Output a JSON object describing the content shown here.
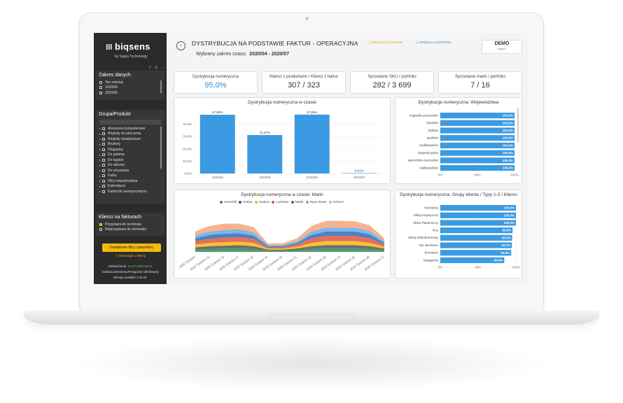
{
  "sidebar": {
    "logo": "biqsens",
    "byline": "by Sagra Technology",
    "mini_icons": "▽ ⊡ ⋯",
    "date_panel": {
      "title": "Zakres danych",
      "items": [
        "Ten miesiąc",
        "2020/06",
        "2020/05"
      ]
    },
    "group_panel": {
      "title": "Grupa/Produkt",
      "items": [
        "Akcesoria komputerowe",
        "Artykuły do pieczenia",
        "Artykuły śniadaniowe",
        "Bruliony",
        "Długopisy",
        "Do golenia",
        "Do kąpieli",
        "Do włosów",
        "Do zmywania",
        "Farby",
        "Filtry kawa/herbata",
        "Kalendarze",
        "Karteczki samoprzylepne"
      ]
    },
    "clients_panel": {
      "title": "Klienci na fakturach",
      "items": [
        "Przypisani do terminala",
        "Nieprzypisani do terminala"
      ]
    },
    "filters_button": "Dodatkowe filtry i parametry",
    "info_link": "ⓘ Informacje o Wersji",
    "refresh_label": "Odświeżanie:",
    "refresh_value": "01.07.2020 08:11",
    "cache_info": "OdataCacheDemoPmsgUser [db:bteam]",
    "version": "Wersja analityki 1.32.01"
  },
  "header": {
    "back_icon": "‹",
    "title": "DYSTRYBUCJA NA PODSTAWIE FAKTUR - OPERACYJNA",
    "range_label": "Wybrany zakres czasu:",
    "range_value": "2020/04 - 2020/07",
    "link_about": "ⓘ WIĘCEJ O STRONIE",
    "link_feedback": "▭ PRZEŚLIJ SUGESTIE",
    "demo": "DEMO",
    "demo_sub": "biqsens"
  },
  "kpis": [
    {
      "label": "Dystrybucja numeryczna",
      "value": "95,0%"
    },
    {
      "label": "Klienci z produktami / Klienci z faktur",
      "value": "307 / 323"
    },
    {
      "label": "Sprzedane SKU / portfolio",
      "value": "282 / 3 699"
    },
    {
      "label": "Sprzedane marki / portfolio",
      "value": "7 / 16"
    }
  ],
  "colors": {
    "accent_blue": "#2f8fd6",
    "bar_blue": "#3b9ae1",
    "yellow": "#f2b90c",
    "sidebar": "#2b2b2b"
  },
  "chart_data": [
    {
      "type": "bar",
      "title": "Dystrybucja numeryczna w czasie",
      "categories": [
        "2020/04",
        "2020/05",
        "2020/06",
        "2020/07"
      ],
      "values": [
        47.69,
        31.27,
        47.83,
        0.31
      ],
      "labels": [
        "47,69%",
        "31,27%",
        "47,83%",
        "0,31%"
      ],
      "yticks": [
        "0,0%",
        "10,0%",
        "20,0%",
        "30,0%",
        "40,0%"
      ],
      "ylim": [
        0,
        50
      ]
    },
    {
      "type": "bar",
      "orientation": "horizontal",
      "title": "Dystrybucja numeryczna: Województwa",
      "categories": [
        "kujawsko-pomorskie",
        "lubuskie",
        "łódzkie",
        "opolskie",
        "podkarpackie",
        "świętokrzyskie",
        "warmińsko-mazurskie",
        "wielkopolskie"
      ],
      "values": [
        100,
        100,
        100,
        100,
        100,
        100,
        100,
        100
      ],
      "labels": [
        "100,0%",
        "100,0%",
        "100,0%",
        "100,0%",
        "100,0%",
        "100,0%",
        "100,0%",
        "100,0%"
      ],
      "xticks": [
        "0%",
        "50%",
        "100%"
      ],
      "xlim": [
        0,
        100
      ]
    },
    {
      "type": "area",
      "title": "Dystrybucja numeryczna w czasie: Marki",
      "legend": [
        "Greenhill",
        "Harber",
        "Hudson",
        "Lockman",
        "Nader",
        "Ryan-Runte",
        "Schoen"
      ],
      "legend_colors": [
        "#2e8b57",
        "#555555",
        "#f2b90c",
        "#e5533c",
        "#2f6db5",
        "#69a8e8",
        "#f4a67a"
      ],
      "x": [
        "2020 Tydzień",
        "2020 Tydzień 15",
        "2020 Tydzień 16",
        "2020 Tydzień 17",
        "2020 Tydzień 18",
        "2020 Tydzień 19",
        "2020 Tydzień 20",
        "2020 Tydzień 21",
        "2020 Tydzień 22",
        "2020 Tydzień 23",
        "2020 Tydzień 24",
        "2020 Tydzień 25",
        "2020 Tydzień 26",
        "2020 Tydzień 27"
      ],
      "series": [
        {
          "name": "Greenhill",
          "values": [
            4,
            5,
            6,
            6,
            5,
            2,
            2,
            3,
            5,
            6,
            6,
            6,
            5,
            3
          ]
        },
        {
          "name": "Harber",
          "values": [
            4,
            5,
            5,
            6,
            5,
            2,
            2,
            3,
            5,
            6,
            6,
            6,
            5,
            3
          ]
        },
        {
          "name": "Hudson",
          "values": [
            5,
            6,
            6,
            6,
            6,
            2,
            2,
            3,
            6,
            7,
            7,
            7,
            6,
            3
          ]
        },
        {
          "name": "Lockman",
          "values": [
            6,
            7,
            8,
            8,
            7,
            2,
            2,
            4,
            8,
            9,
            9,
            9,
            8,
            4
          ]
        },
        {
          "name": "Nader",
          "values": [
            5,
            7,
            7,
            7,
            6,
            2,
            2,
            3,
            6,
            8,
            8,
            8,
            7,
            3
          ]
        },
        {
          "name": "Ryan-Runte",
          "values": [
            5,
            6,
            7,
            7,
            6,
            2,
            2,
            3,
            6,
            7,
            7,
            7,
            6,
            3
          ]
        },
        {
          "name": "Schoen",
          "values": [
            7,
            10,
            11,
            10,
            9,
            3,
            3,
            5,
            10,
            12,
            12,
            11,
            10,
            5
          ]
        }
      ]
    },
    {
      "type": "bar",
      "orientation": "horizontal",
      "title": "Dystrybucja numeryczna: Grupy klienta / Typy 1-2 / Klienci",
      "categories": [
        "Hurtownia",
        "Sklep Artystyczny",
        "Sklep Papierniczy",
        "Inny",
        "Sklep Wielobranżowy",
        "Nie określono",
        "Biurosieci",
        "Księgarnia"
      ],
      "values": [
        100,
        100,
        100,
        95.6,
        95.0,
        94.7,
        93.8,
        84.6
      ],
      "labels": [
        "100,0%",
        "100,0%",
        "100,0%",
        "95,6%",
        "95,0%",
        "94,7%",
        "93,8%",
        "84,6%"
      ],
      "xticks": [
        "0%",
        "50%",
        "100%"
      ],
      "xlim": [
        0,
        100
      ]
    }
  ]
}
